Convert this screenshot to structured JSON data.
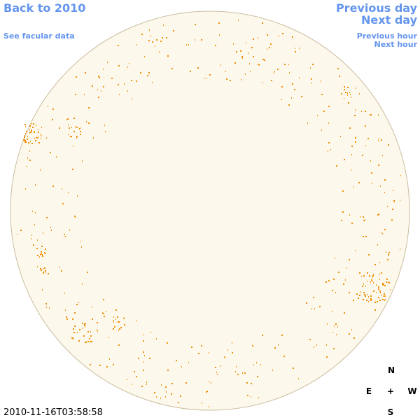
{
  "links": {
    "back": "Back to 2010",
    "facular": "See facular data",
    "previous_day": "Previous day",
    "next_day": "Next day",
    "previous_hour": "Previous hour",
    "next_hour": "Next hour"
  },
  "timestamp": "2010-11-16T03:58:58",
  "compass": {
    "north": "N",
    "east": "E",
    "center": "+",
    "west": "W",
    "south": "S"
  }
}
